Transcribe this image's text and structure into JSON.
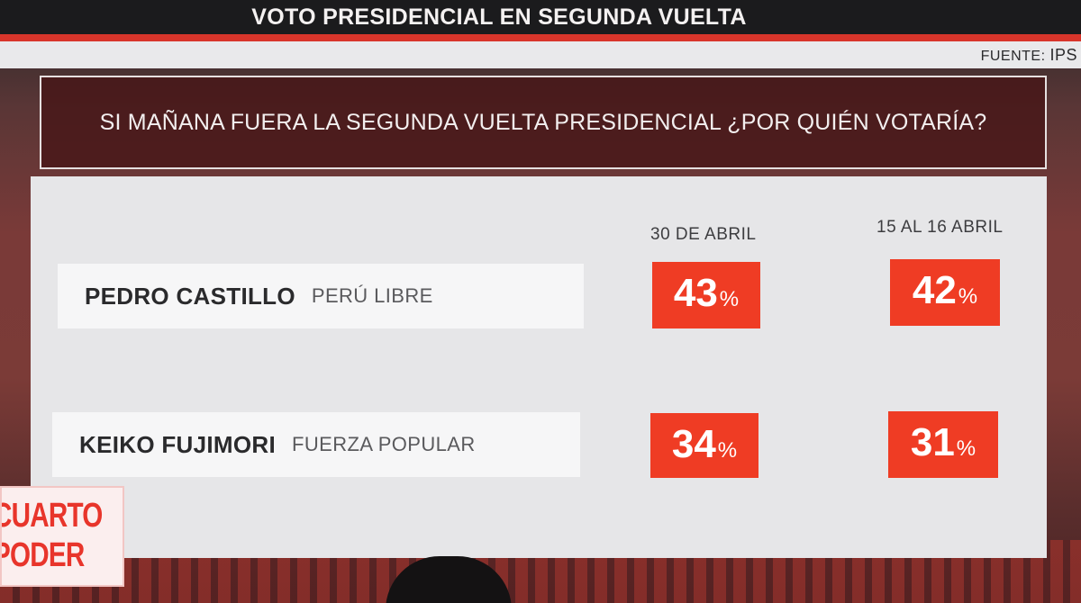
{
  "header": {
    "title": "VOTO PRESIDENCIAL EN SEGUNDA VUELTA"
  },
  "source": {
    "label": "FUENTE:",
    "value": "IPS"
  },
  "question": "SI MAÑANA FUERA LA SEGUNDA VUELTA PRESIDENCIAL ¿POR QUIÉN VOTARÍA?",
  "columns": [
    "30 DE ABRIL",
    "15 AL 16 ABRIL"
  ],
  "candidates": [
    {
      "name": "PEDRO CASTILLO",
      "party": "PERÚ LIBRE",
      "values": [
        "43",
        "42"
      ]
    },
    {
      "name": "KEIKO FUJIMORI",
      "party": "FUERZA POPULAR",
      "values": [
        "34",
        "31"
      ]
    }
  ],
  "percent_symbol": "%",
  "logo": {
    "line1": "CUARTO",
    "line2": "PODER"
  },
  "colors": {
    "accent_red": "#ef3c24",
    "panel": "#e6e6e8",
    "top_bar": "#1b1b1d"
  }
}
